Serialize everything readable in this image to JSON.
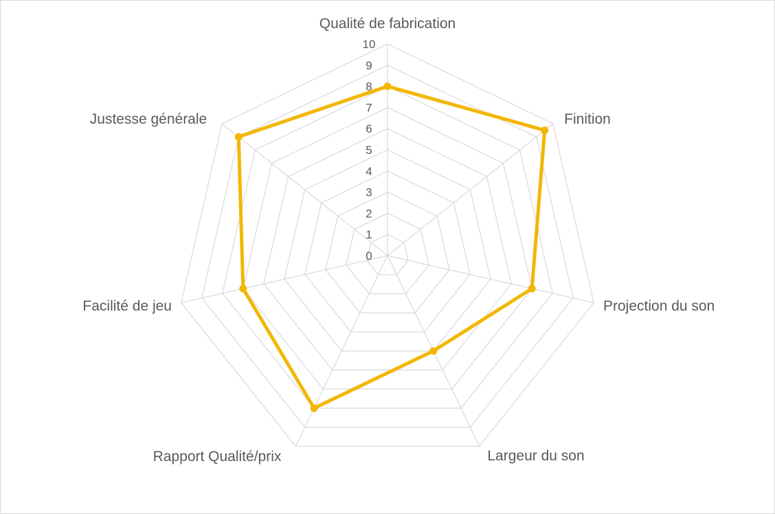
{
  "chart_data": {
    "type": "radar",
    "categories": [
      "Qualité de fabrication",
      "Finition",
      "Projection du son",
      "Largeur du son",
      "Rapport Qualité/prix",
      "Facilité de jeu",
      "Justesse générale"
    ],
    "series": [
      {
        "values": [
          8,
          9.5,
          7,
          5,
          8,
          7,
          9
        ]
      }
    ],
    "radial_ticks": [
      "0",
      "1",
      "2",
      "3",
      "4",
      "5",
      "6",
      "7",
      "8",
      "9",
      "10"
    ],
    "rlim": [
      0,
      10
    ],
    "grid": true,
    "legend": "none",
    "colors": {
      "series": "#f2b705",
      "grid": "#d9d9d9",
      "text": "#595959"
    }
  }
}
